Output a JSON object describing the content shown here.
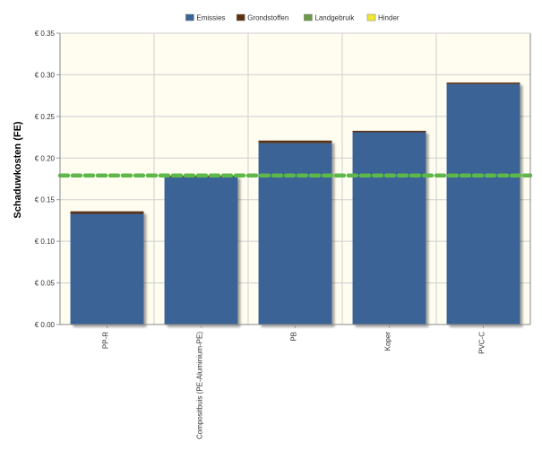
{
  "chart_data": {
    "type": "bar",
    "stacked": true,
    "title": "",
    "xlabel": "",
    "ylabel": "Schaduwkosten (FE)",
    "ylim": [
      0,
      0.35
    ],
    "yticks": [
      "€ 0.00",
      "€ 0.05",
      "€ 0.10",
      "€ 0.15",
      "€ 0.20",
      "€ 0.25",
      "€ 0.30",
      "€ 0.35"
    ],
    "ytick_values": [
      0,
      0.05,
      0.1,
      0.15,
      0.2,
      0.25,
      0.3,
      0.35
    ],
    "categories": [
      "PP-R",
      "Compositbuis (PE-Aluminium-PE)",
      "PB",
      "Koper",
      "PVC-C"
    ],
    "series": [
      {
        "name": "Emissies",
        "color": "#3a6496",
        "values": [
          0.133,
          0.177,
          0.218,
          0.231,
          0.289
        ]
      },
      {
        "name": "Grondstoffen",
        "color": "#5a3212",
        "values": [
          0.003,
          0.001,
          0.003,
          0.001,
          0.001
        ]
      },
      {
        "name": "Landgebruik",
        "color": "#6a9a48",
        "values": [
          0,
          0,
          0,
          0,
          0
        ]
      },
      {
        "name": "Hinder",
        "color": "#f2e832",
        "values": [
          0,
          0,
          0,
          0,
          0
        ]
      }
    ],
    "reference_line": {
      "value": 0.179,
      "color": "#5cb848",
      "style": "dashed"
    },
    "legend_position": "top-center",
    "grid": true,
    "plot_background": "#fffcf0"
  }
}
